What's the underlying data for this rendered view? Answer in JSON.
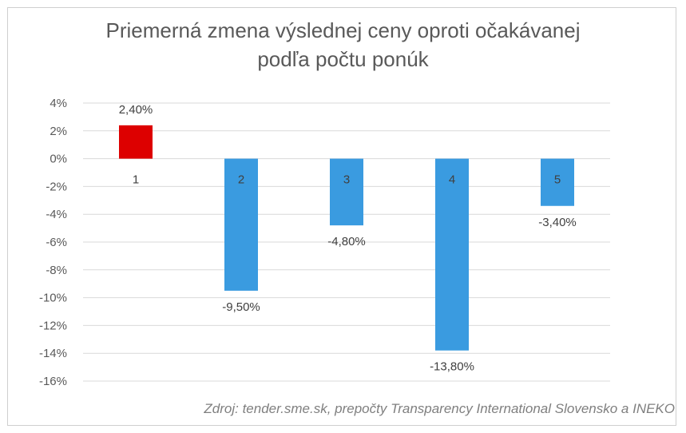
{
  "chart_data": {
    "type": "bar",
    "title_lines": [
      "Priemerná zmena výslednej ceny oproti očakávanej",
      "podľa počtu ponúk"
    ],
    "categories": [
      "1",
      "2",
      "3",
      "4",
      "5"
    ],
    "values": [
      2.4,
      -9.5,
      -4.8,
      -13.8,
      -3.4
    ],
    "data_labels": [
      "2,40%",
      "-9,50%",
      "-4,80%",
      "-13,80%",
      "-3,40%"
    ],
    "bar_colors": [
      "#dd0000",
      "#3a9be0",
      "#3a9be0",
      "#3a9be0",
      "#3a9be0"
    ],
    "y_ticks": [
      4,
      2,
      0,
      -2,
      -4,
      -6,
      -8,
      -10,
      -12,
      -14,
      -16
    ],
    "y_tick_labels": [
      "4%",
      "2%",
      "0%",
      "-2%",
      "-4%",
      "-6%",
      "-8%",
      "-10%",
      "-12%",
      "-14%",
      "-16%"
    ],
    "ylim": [
      -16,
      4
    ],
    "grid": true,
    "source": "Zdroj: tender.sme.sk, prepočty Transparency International Slovensko a INEKO"
  }
}
